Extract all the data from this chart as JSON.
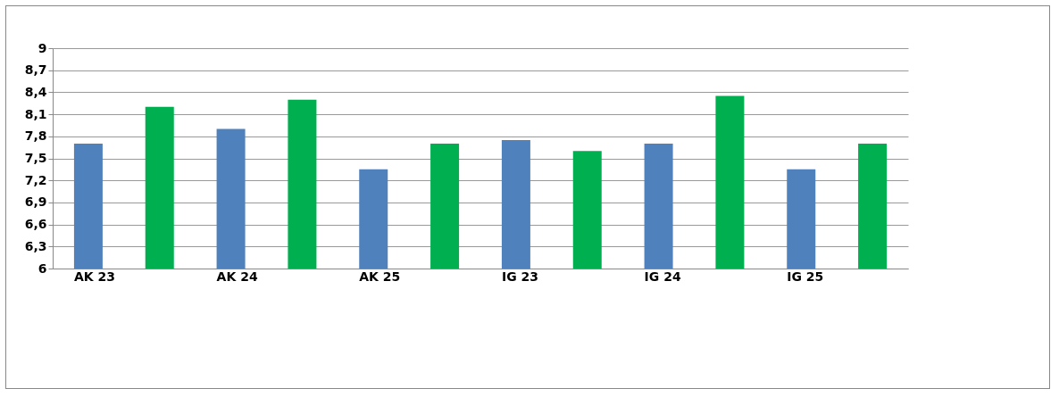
{
  "chart_data": {
    "type": "bar",
    "categories": [
      "AK 23",
      null,
      "AK 24",
      null,
      "AK 25",
      null,
      "IG 23",
      null,
      "IG 24",
      null,
      "IG 25",
      null
    ],
    "values": [
      7.7,
      8.2,
      7.9,
      8.3,
      7.35,
      7.7,
      7.75,
      7.6,
      7.7,
      8.35,
      7.35,
      7.7
    ],
    "colors": [
      "#4f81bd",
      "#00b050",
      "#4f81bd",
      "#00b050",
      "#4f81bd",
      "#00b050",
      "#4f81bd",
      "#00b050",
      "#4f81bd",
      "#00b050",
      "#4f81bd",
      "#00b050"
    ],
    "ylim": [
      6,
      9
    ],
    "yticks": [
      6,
      {
        "value": 6.3,
        "label": "6,3"
      },
      {
        "value": 6.6,
        "label": "6,6"
      },
      {
        "value": 6.9,
        "label": "6,9"
      },
      {
        "value": 7.2,
        "label": "7,2"
      },
      {
        "value": 7.5,
        "label": "7,5"
      },
      {
        "value": 7.8,
        "label": "7,8"
      },
      {
        "value": 8.1,
        "label": "8,1"
      },
      {
        "value": 8.4,
        "label": "8,4"
      },
      {
        "value": 8.7,
        "label": "8,7"
      },
      9
    ],
    "grid": "y"
  }
}
